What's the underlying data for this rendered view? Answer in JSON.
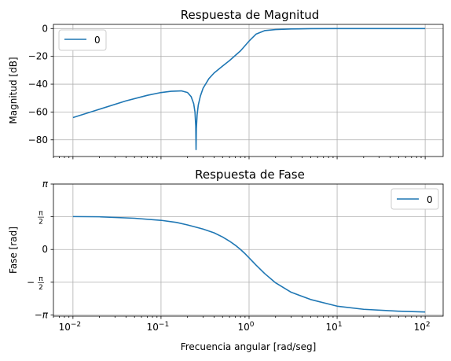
{
  "chart_data": [
    {
      "type": "line",
      "title": "Respuesta de Magnitud",
      "xlabel": "",
      "ylabel": "Magnitud [dB]",
      "xscale": "log",
      "xlim": [
        0.006,
        160
      ],
      "ylim": [
        -92,
        3
      ],
      "yticks": [
        0,
        -20,
        -40,
        -60,
        -80
      ],
      "ytick_labels": [
        "0",
        "−20",
        "−40",
        "−60",
        "−80"
      ],
      "grid": true,
      "legend": {
        "placement": "top-left",
        "entries": [
          "0"
        ]
      },
      "color": "#1f77b4",
      "series": [
        {
          "name": "0",
          "x": [
            0.01,
            0.02,
            0.04,
            0.07,
            0.1,
            0.13,
            0.17,
            0.2,
            0.22,
            0.235,
            0.243,
            0.248,
            0.25,
            0.252,
            0.257,
            0.265,
            0.28,
            0.3,
            0.35,
            0.4,
            0.5,
            0.6,
            0.8,
            1.0,
            1.2,
            1.5,
            2,
            3,
            5,
            10,
            30,
            100
          ],
          "y": [
            -64,
            -58,
            -52,
            -48,
            -46,
            -45.1,
            -44.8,
            -46,
            -49,
            -54,
            -60,
            -70,
            -87,
            -72,
            -62,
            -55,
            -48.5,
            -43,
            -36,
            -32,
            -27,
            -23,
            -16,
            -9,
            -4,
            -1.5,
            -0.7,
            -0.3,
            -0.1,
            0,
            0,
            0
          ]
        }
      ]
    },
    {
      "type": "line",
      "title": "Respuesta de Fase",
      "xlabel": "Frecuencia angular [rad/seg]",
      "ylabel": "Fase [rad]",
      "xscale": "log",
      "xlim": [
        0.006,
        160
      ],
      "ylim": [
        -3.2,
        3.1416
      ],
      "yticks": [
        3.1416,
        1.5708,
        0,
        -1.5708,
        -3.1416
      ],
      "ytick_labels": [
        "π",
        "π/2",
        "0",
        "−π/2",
        "−π"
      ],
      "xticks": [
        0.01,
        0.1,
        1,
        10,
        100
      ],
      "xtick_labels": [
        "10−2",
        "10−1",
        "100",
        "101",
        "102"
      ],
      "grid": true,
      "legend": {
        "placement": "top-right",
        "entries": [
          "0"
        ]
      },
      "color": "#1f77b4",
      "series": [
        {
          "name": "0",
          "x": [
            0.01,
            0.02,
            0.05,
            0.1,
            0.15,
            0.2,
            0.3,
            0.4,
            0.5,
            0.6,
            0.7,
            0.8,
            0.9,
            1.0,
            1.2,
            1.5,
            2,
            3,
            5,
            10,
            20,
            50,
            100
          ],
          "y": [
            1.58,
            1.57,
            1.5,
            1.4,
            1.3,
            1.18,
            0.98,
            0.8,
            0.6,
            0.4,
            0.2,
            0.0,
            -0.2,
            -0.4,
            -0.75,
            -1.15,
            -1.6,
            -2.05,
            -2.4,
            -2.72,
            -2.87,
            -2.96,
            -3.0
          ]
        }
      ]
    }
  ]
}
